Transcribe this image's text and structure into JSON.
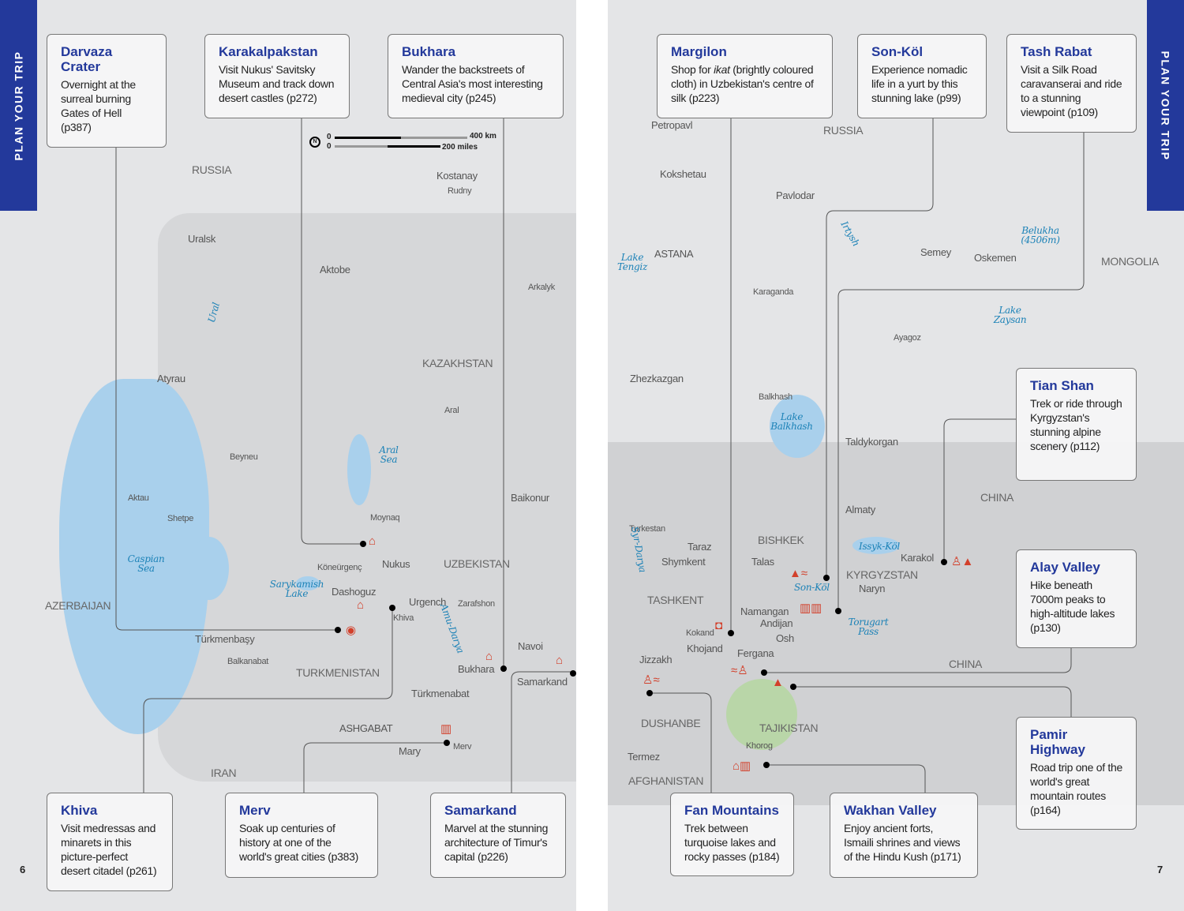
{
  "side_tab_label": "PLAN YOUR TRIP",
  "page_numbers": {
    "left": "6",
    "right": "7"
  },
  "scale": {
    "zero": "0",
    "km": "400 km",
    "miles": "200 miles",
    "north": "N"
  },
  "callouts": {
    "darvaza": {
      "title": "Darvaza Crater",
      "text": "Overnight at the surreal burning Gates of Hell (p387)"
    },
    "karakalpakstan": {
      "title": "Karakalpakstan",
      "text": "Visit Nukus' Savitsky Museum and track down desert castles (p272)"
    },
    "bukhara": {
      "title": "Bukhara",
      "text": "Wander the backstreets of Central Asia's most interesting medieval city (p245)"
    },
    "khiva": {
      "title": "Khiva",
      "text": "Visit medressas and minarets in this picture-perfect desert citadel (p261)"
    },
    "merv": {
      "title": "Merv",
      "text": "Soak up centuries of history at one of the world's great cities (p383)"
    },
    "samarkand": {
      "title": "Samarkand",
      "text": "Marvel at the stunning architecture of Timur's capital (p226)"
    },
    "margilon": {
      "title": "Margilon",
      "text_pre": "Shop for ",
      "text_em": "ikat",
      "text_post": " (brightly coloured cloth) in Uzbekistan's centre of silk (p223)"
    },
    "sonkol": {
      "title": "Son-Köl",
      "text": "Experience nomadic life in a yurt by this stunning lake (p99)"
    },
    "tashrabat": {
      "title": "Tash Rabat",
      "text": "Visit a Silk Road caravanserai and ride to a stunning viewpoint (p109)"
    },
    "tianshan": {
      "title": "Tian Shan",
      "text": "Trek or ride through Kyrgyzstan's stunning alpine scenery (p112)"
    },
    "alay": {
      "title": "Alay Valley",
      "text": "Hike beneath 7000m peaks to high-altitude lakes (p130)"
    },
    "pamir": {
      "title": "Pamir Highway",
      "text": "Road trip one of the world's great mountain routes (p164)"
    },
    "fan": {
      "title": "Fan Mountains",
      "text": "Trek between turquoise lakes and rocky passes (p184)"
    },
    "wakhan": {
      "title": "Wakhan Valley",
      "text": "Enjoy ancient forts, Ismaili shrines and views of the Hindu Kush (p171)"
    }
  },
  "places": {
    "left": [
      "RUSSIA",
      "Uralsk",
      "Aktobe",
      "Kostanay",
      "Rudny",
      "Arkalyk",
      "KAZAKHSTAN",
      "Aral",
      "Atyrau",
      "Beyneu",
      "Aktau",
      "Shetpe",
      "Baikonur",
      "Moynaq",
      "Nukus",
      "Köneürgenç",
      "UZBEKISTAN",
      "Dashoguz",
      "Urgench",
      "Khiva",
      "Zarafshon",
      "Türkmenbaşy",
      "Balkanabat",
      "TURKMENISTAN",
      "Türkmenabat",
      "Bukhara",
      "Navoi",
      "Samarkand",
      "ASHGABAT",
      "Mary",
      "Merv",
      "IRAN",
      "AZERBAIJAN"
    ],
    "right": [
      "Petropavl",
      "RUSSIA",
      "Kokshetau",
      "Pavlodar",
      "ASTANA",
      "Semey",
      "Oskemen",
      "MONGOLIA",
      "Karaganda",
      "Ayagoz",
      "Zhezkazgan",
      "Balkhash",
      "Taldykorgan",
      "CHINA",
      "Almaty",
      "Turkestan",
      "Taraz",
      "BISHKEK",
      "Karakol",
      "Shymkent",
      "Talas",
      "KYRGYZSTAN",
      "Naryn",
      "TASHKENT",
      "Namangan",
      "Andijan",
      "Kokand",
      "Osh",
      "Khojand",
      "Fergana",
      "CHINA",
      "Jizzakh",
      "DUSHANBE",
      "TAJIKISTAN",
      "Khorog",
      "Termez",
      "AFGHANISTAN"
    ]
  },
  "water": {
    "left": [
      "Caspian Sea",
      "Aral Sea",
      "Sarykamish Lake",
      "Ural",
      "Amu-Darya"
    ],
    "right": [
      "Lake Tengiz",
      "Irtysh",
      "Lake Zaysan",
      "Lake Balkhash",
      "Syr-Darya",
      "Issyk-Köl",
      "Son-Köl"
    ]
  },
  "features": {
    "belukha": "Belukha (4506m)",
    "torugart": "Torugart Pass"
  },
  "colors": {
    "accent": "#23399b",
    "icon": "#d2402b",
    "water": "#a9d0ec",
    "land": "#d6d7d9"
  }
}
